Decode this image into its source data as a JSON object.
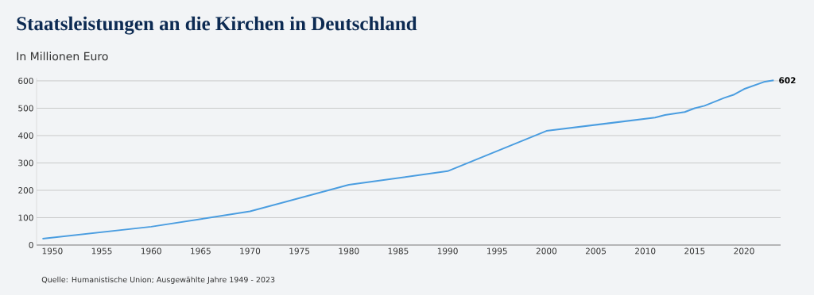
{
  "chart_data": {
    "type": "line",
    "title": "Staatsleistungen an die Kirchen in Deutschland",
    "subtitle": "In Millionen Euro",
    "annotations": [
      "Quelle: Humanistische Union; Ausgewählte Jahre 1949 - 2023"
    ],
    "x": [
      1949,
      1960,
      1970,
      1980,
      1990,
      2000,
      2011,
      2012,
      2014,
      2015,
      2016,
      2018,
      2019,
      2020,
      2022,
      2023
    ],
    "series": [
      {
        "color": "#4a9de0",
        "values": [
          23,
          67,
          123,
          220,
          270,
          417,
          466,
          475,
          486,
          500,
          509,
          538,
          550,
          570,
          596,
          602
        ],
        "value_labels": [
          null,
          null,
          null,
          null,
          null,
          null,
          null,
          null,
          null,
          null,
          null,
          null,
          null,
          null,
          null,
          "602"
        ]
      }
    ],
    "xlim": [
      1948.4,
      2023.7
    ],
    "xticks": [
      1950,
      1955,
      1960,
      1965,
      1970,
      1975,
      1980,
      1985,
      1990,
      1995,
      2000,
      2005,
      2010,
      2015,
      2020
    ],
    "ylim": [
      0,
      610
    ],
    "yticks": [
      0,
      100,
      200,
      300,
      400,
      500,
      600
    ],
    "grid": "y",
    "marker": "none",
    "line_style": "solid"
  }
}
